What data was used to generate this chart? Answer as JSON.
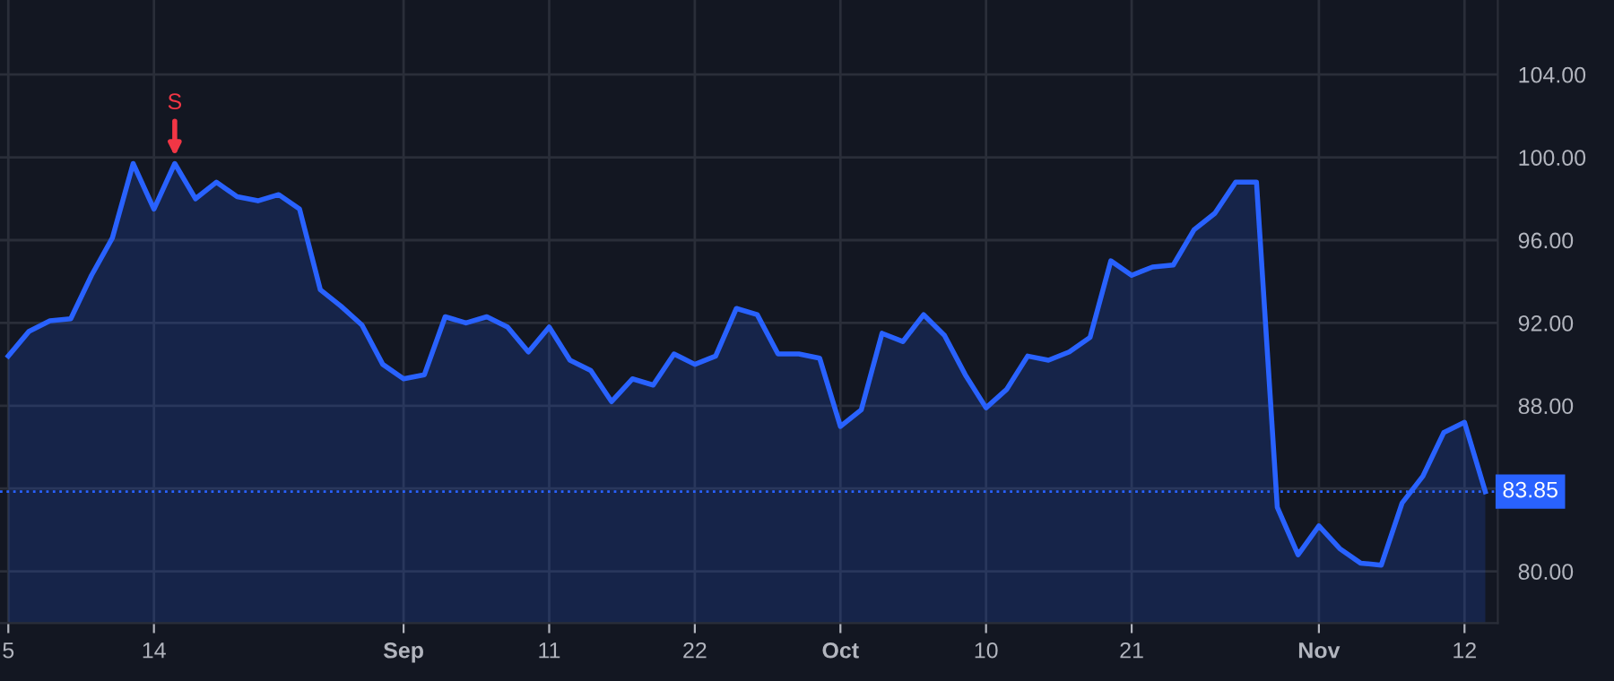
{
  "chart_data": {
    "type": "area",
    "categories": [
      "5",
      null,
      null,
      null,
      null,
      null,
      null,
      "14",
      null,
      null,
      null,
      null,
      null,
      null,
      null,
      null,
      null,
      null,
      null,
      "Sep",
      null,
      null,
      null,
      null,
      null,
      null,
      "11",
      null,
      null,
      null,
      null,
      null,
      null,
      "22",
      null,
      null,
      null,
      null,
      null,
      null,
      "Oct",
      null,
      null,
      null,
      null,
      null,
      null,
      "10",
      null,
      null,
      null,
      null,
      null,
      null,
      "21",
      null,
      null,
      null,
      null,
      null,
      null,
      null,
      null,
      "Nov",
      null,
      null,
      null,
      null,
      null,
      null,
      "12",
      null
    ],
    "series": [
      {
        "color": "#2962ff",
        "values": [
          90.4,
          91.6,
          92.1,
          92.2,
          94.3,
          96.1,
          99.7,
          97.5,
          99.7,
          98.0,
          98.8,
          98.1,
          97.9,
          98.2,
          97.5,
          93.6,
          92.8,
          91.9,
          90.0,
          89.3,
          89.5,
          92.3,
          92.0,
          92.3,
          91.8,
          90.6,
          91.8,
          90.2,
          89.7,
          88.2,
          89.3,
          89.0,
          90.5,
          90.0,
          90.4,
          92.7,
          92.4,
          90.5,
          90.5,
          90.3,
          87.0,
          87.8,
          91.5,
          91.1,
          92.4,
          91.4,
          89.5,
          87.9,
          88.8,
          90.4,
          90.2,
          90.6,
          91.3,
          95.0,
          94.3,
          94.7,
          94.8,
          96.5,
          97.3,
          98.8,
          98.8,
          83.1,
          80.8,
          82.2,
          81.1,
          80.4,
          80.3,
          83.3,
          84.6,
          86.7,
          87.2,
          83.85
        ]
      }
    ],
    "ylim": [
      77.5,
      107.6
    ],
    "yticks": [
      {
        "value": 80,
        "label": "80.00"
      },
      {
        "value": 84,
        "label": null
      },
      {
        "value": 88,
        "label": "88.00"
      },
      {
        "value": 92,
        "label": "92.00"
      },
      {
        "value": 96,
        "label": "96.00"
      },
      {
        "value": 100,
        "label": "100.00"
      },
      {
        "value": 104,
        "label": "104.00"
      }
    ],
    "ref_lines": [
      {
        "axis": "y",
        "value": 83.85,
        "label": "83.85",
        "color": "#2962ff",
        "line_style": "dotted"
      }
    ],
    "annotations": [
      {
        "text": "S",
        "y": 99.7
      }
    ],
    "grid": true
  }
}
